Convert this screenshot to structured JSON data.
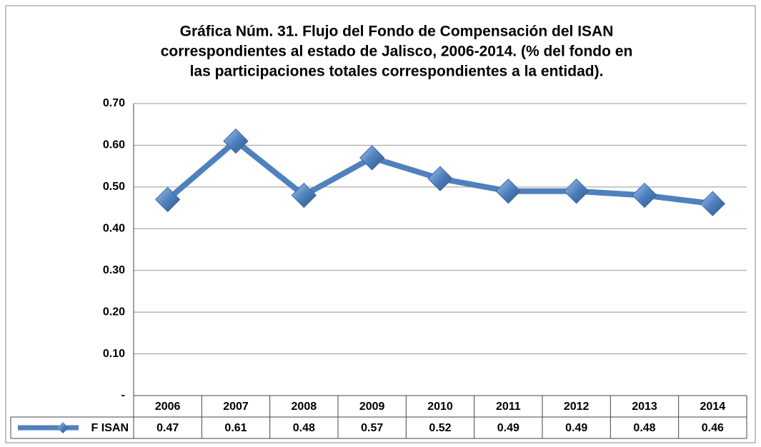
{
  "chart_data": {
    "type": "line",
    "title": "Gráfica Núm. 31. Flujo del Fondo de Compensación del ISAN",
    "subtitle": [
      "correspondientes al estado de Jalisco, 2006-2014. (% del fondo en",
      "las participaciones totales correspondientes a la entidad)."
    ],
    "categories": [
      "2006",
      "2007",
      "2008",
      "2009",
      "2010",
      "2011",
      "2012",
      "2013",
      "2014"
    ],
    "series": [
      {
        "name": "F ISAN",
        "color": "#4f81bd",
        "values": [
          0.47,
          0.61,
          0.48,
          0.57,
          0.52,
          0.49,
          0.49,
          0.48,
          0.46
        ]
      }
    ],
    "ylim": [
      0,
      0.7
    ],
    "yticks": [
      {
        "value": 0,
        "label": "-"
      },
      {
        "value": 0.1,
        "label": "0.10"
      },
      {
        "value": 0.2,
        "label": "0.20"
      },
      {
        "value": 0.3,
        "label": "0.30"
      },
      {
        "value": 0.4,
        "label": "0.40"
      },
      {
        "value": 0.5,
        "label": "0.50"
      },
      {
        "value": 0.6,
        "label": "0.60"
      },
      {
        "value": 0.7,
        "label": "0.70"
      }
    ],
    "grid": true
  }
}
